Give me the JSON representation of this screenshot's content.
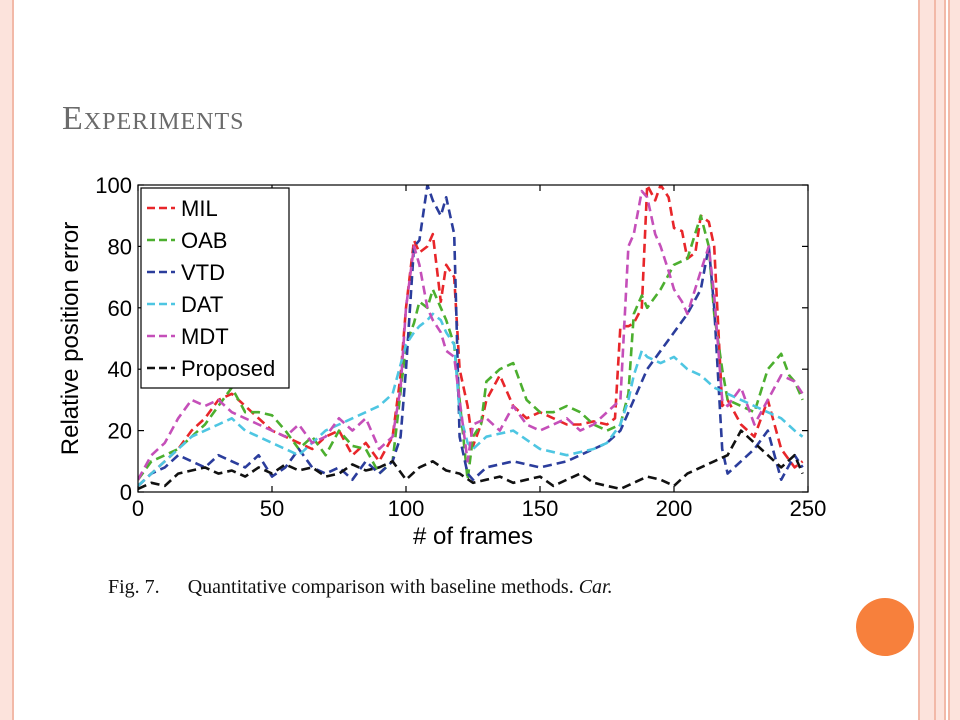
{
  "slide": {
    "title": "Experiments"
  },
  "caption": {
    "figure": "Fig. 7.",
    "text": "Quantitative comparison with baseline methods.",
    "emphasis": "Car."
  },
  "theme": {
    "accent": "#f7803c",
    "border": "#f2b9a8",
    "border_fill": "#fce3dc",
    "title_color": "#6b6b6b"
  },
  "chart_data": {
    "type": "line",
    "xlabel": "# of frames",
    "ylabel": "Relative position error",
    "xlim": [
      0,
      250
    ],
    "ylim": [
      0,
      100
    ],
    "xticks": [
      0,
      50,
      100,
      150,
      200,
      250
    ],
    "yticks": [
      0,
      20,
      40,
      60,
      80,
      100
    ],
    "legend_position": "top-left",
    "line_style": "dashed",
    "series": [
      {
        "name": "MIL",
        "color": "#e8262a",
        "x": [
          0,
          5,
          10,
          15,
          20,
          25,
          30,
          35,
          40,
          45,
          50,
          55,
          60,
          65,
          70,
          75,
          80,
          85,
          90,
          95,
          98,
          100,
          103,
          105,
          108,
          110,
          113,
          115,
          118,
          120,
          123,
          125,
          128,
          130,
          135,
          140,
          145,
          150,
          155,
          160,
          165,
          170,
          175,
          178,
          180,
          183,
          185,
          188,
          190,
          193,
          195,
          198,
          200,
          203,
          205,
          208,
          210,
          213,
          215,
          218,
          220,
          225,
          230,
          235,
          240,
          245,
          248
        ],
        "y": [
          2,
          6,
          10,
          14,
          20,
          24,
          30,
          32,
          28,
          24,
          20,
          18,
          16,
          14,
          18,
          20,
          12,
          16,
          10,
          18,
          38,
          60,
          82,
          78,
          80,
          84,
          62,
          74,
          70,
          40,
          28,
          15,
          22,
          30,
          38,
          28,
          24,
          26,
          24,
          22,
          22,
          23,
          22,
          24,
          54,
          54,
          55,
          60,
          100,
          95,
          100,
          96,
          86,
          85,
          76,
          78,
          90,
          88,
          80,
          28,
          30,
          22,
          18,
          30,
          14,
          8,
          10
        ]
      },
      {
        "name": "OAB",
        "color": "#4caf2f",
        "x": [
          0,
          5,
          10,
          15,
          20,
          25,
          30,
          35,
          40,
          45,
          50,
          55,
          60,
          65,
          70,
          75,
          80,
          85,
          90,
          95,
          100,
          103,
          105,
          108,
          110,
          113,
          115,
          118,
          120,
          123,
          125,
          128,
          130,
          135,
          140,
          145,
          150,
          155,
          160,
          165,
          170,
          175,
          180,
          183,
          185,
          188,
          190,
          195,
          200,
          205,
          210,
          213,
          215,
          218,
          220,
          225,
          230,
          235,
          240,
          243,
          245,
          248
        ],
        "y": [
          4,
          10,
          12,
          14,
          18,
          22,
          28,
          34,
          26,
          26,
          25,
          20,
          14,
          18,
          12,
          20,
          15,
          14,
          6,
          10,
          48,
          55,
          62,
          60,
          66,
          60,
          56,
          48,
          30,
          4,
          18,
          22,
          36,
          40,
          42,
          30,
          26,
          26,
          28,
          26,
          22,
          20,
          22,
          32,
          58,
          64,
          60,
          66,
          74,
          76,
          90,
          80,
          58,
          40,
          30,
          28,
          26,
          40,
          45,
          38,
          36,
          30
        ]
      },
      {
        "name": "VTD",
        "color": "#2b3d9c",
        "x": [
          0,
          5,
          10,
          15,
          20,
          25,
          30,
          35,
          40,
          45,
          50,
          55,
          60,
          65,
          70,
          75,
          80,
          85,
          90,
          95,
          98,
          100,
          103,
          105,
          108,
          110,
          113,
          115,
          118,
          120,
          123,
          125,
          130,
          140,
          150,
          160,
          170,
          175,
          180,
          185,
          190,
          195,
          200,
          205,
          210,
          213,
          215,
          218,
          220,
          225,
          230,
          235,
          240,
          245,
          248
        ],
        "y": [
          2,
          6,
          8,
          12,
          10,
          8,
          12,
          10,
          8,
          12,
          5,
          8,
          14,
          8,
          6,
          8,
          4,
          10,
          6,
          10,
          18,
          40,
          80,
          82,
          100,
          95,
          90,
          96,
          84,
          18,
          6,
          4,
          8,
          10,
          8,
          10,
          14,
          16,
          20,
          30,
          40,
          46,
          52,
          58,
          66,
          80,
          60,
          14,
          6,
          10,
          14,
          20,
          4,
          12,
          8
        ]
      },
      {
        "name": "DAT",
        "color": "#4ec6e2",
        "x": [
          0,
          5,
          10,
          15,
          20,
          25,
          30,
          35,
          40,
          45,
          50,
          55,
          60,
          65,
          70,
          75,
          80,
          85,
          90,
          95,
          100,
          103,
          105,
          108,
          110,
          113,
          115,
          118,
          120,
          123,
          125,
          130,
          140,
          150,
          160,
          170,
          175,
          180,
          183,
          185,
          188,
          190,
          195,
          200,
          205,
          210,
          215,
          220,
          225,
          230,
          235,
          240,
          245,
          248
        ],
        "y": [
          2,
          6,
          10,
          14,
          18,
          20,
          22,
          24,
          20,
          18,
          16,
          14,
          12,
          16,
          20,
          22,
          24,
          26,
          28,
          32,
          48,
          52,
          54,
          56,
          58,
          56,
          52,
          48,
          26,
          16,
          14,
          18,
          20,
          14,
          12,
          14,
          16,
          22,
          30,
          38,
          46,
          44,
          42,
          44,
          40,
          38,
          34,
          32,
          30,
          28,
          26,
          24,
          20,
          18
        ]
      },
      {
        "name": "MDT",
        "color": "#c54fb9",
        "x": [
          0,
          5,
          10,
          15,
          20,
          25,
          30,
          35,
          40,
          45,
          50,
          55,
          60,
          65,
          70,
          75,
          80,
          85,
          90,
          95,
          98,
          100,
          103,
          105,
          108,
          110,
          113,
          115,
          118,
          120,
          123,
          125,
          130,
          135,
          140,
          145,
          150,
          155,
          160,
          165,
          170,
          175,
          180,
          183,
          185,
          188,
          190,
          193,
          195,
          198,
          200,
          203,
          205,
          210,
          213,
          215,
          218,
          220,
          225,
          230,
          235,
          240,
          245,
          248
        ],
        "y": [
          4,
          12,
          16,
          24,
          30,
          28,
          30,
          26,
          24,
          22,
          20,
          18,
          22,
          16,
          18,
          24,
          20,
          24,
          14,
          18,
          34,
          60,
          80,
          74,
          60,
          56,
          52,
          46,
          44,
          30,
          10,
          22,
          24,
          20,
          28,
          22,
          20,
          22,
          24,
          20,
          22,
          26,
          30,
          80,
          84,
          98,
          96,
          84,
          80,
          72,
          66,
          62,
          58,
          72,
          80,
          64,
          30,
          28,
          34,
          22,
          30,
          38,
          36,
          32
        ]
      },
      {
        "name": "Proposed",
        "color": "#111111",
        "x": [
          0,
          5,
          10,
          15,
          20,
          25,
          30,
          35,
          40,
          45,
          50,
          55,
          60,
          65,
          70,
          75,
          80,
          85,
          90,
          95,
          100,
          105,
          110,
          115,
          120,
          125,
          130,
          135,
          140,
          145,
          150,
          155,
          160,
          165,
          170,
          175,
          180,
          185,
          190,
          195,
          200,
          205,
          210,
          215,
          220,
          225,
          230,
          235,
          240,
          245,
          248
        ],
        "y": [
          1,
          3,
          2,
          6,
          7,
          8,
          6,
          7,
          5,
          8,
          6,
          9,
          7,
          8,
          5,
          6,
          9,
          7,
          8,
          10,
          4,
          8,
          10,
          7,
          6,
          3,
          4,
          5,
          3,
          4,
          5,
          2,
          4,
          6,
          3,
          2,
          1,
          3,
          5,
          4,
          2,
          6,
          8,
          10,
          12,
          20,
          16,
          12,
          8,
          12,
          6
        ]
      }
    ]
  }
}
